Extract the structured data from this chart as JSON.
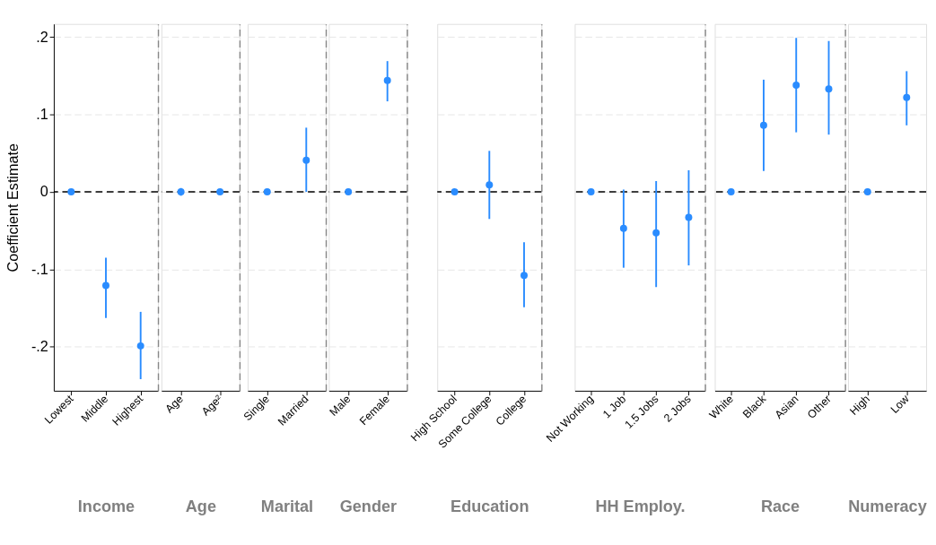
{
  "chart_data": [
    {
      "type": "scatter",
      "xlabel": "Income",
      "ylabel": "Coefficient Estimate",
      "categories": [
        "Lowest",
        "Middle",
        "Highest"
      ],
      "series": [
        {
          "color": "#2a8cff",
          "values": [
            0,
            -0.121,
            -0.199
          ],
          "errors": [
            null,
            [
              -0.163,
              -0.085
            ],
            [
              -0.242,
              -0.155
            ]
          ]
        }
      ],
      "ylim": [
        -0.257,
        0.217
      ],
      "yticks": [
        {
          "value": -0.2,
          "label": "-.2"
        },
        {
          "value": -0.1,
          "label": "-.1"
        },
        0,
        {
          "value": 0.1,
          "label": ".1"
        },
        {
          "value": 0.2,
          "label": ".2"
        }
      ],
      "ref_lines": [
        {
          "axis": "y",
          "value": 0,
          "color": "#000000",
          "line_style": "dashed"
        }
      ],
      "grid": "y",
      "marker": "circle"
    },
    {
      "type": "scatter",
      "xlabel": "Age",
      "categories": [
        "Age",
        "Age²"
      ],
      "series": [
        {
          "color": "#2a8cff",
          "values": [
            0,
            0
          ],
          "errors": [
            [
              -0.005,
              0.005
            ],
            null
          ]
        }
      ],
      "ylim": [
        -0.257,
        0.217
      ],
      "yticks": [
        -0.2,
        -0.1,
        0,
        0.1,
        0.2
      ],
      "ref_lines": [
        {
          "axis": "y",
          "value": 0,
          "color": "#000000",
          "line_style": "dashed"
        }
      ],
      "grid": "y",
      "marker": "circle",
      "tick_labels": "x"
    },
    {
      "type": "scatter",
      "xlabel": "Marital",
      "categories": [
        "Single",
        "Married"
      ],
      "series": [
        {
          "color": "#2a8cff",
          "values": [
            0,
            0.041
          ],
          "errors": [
            null,
            [
              0,
              0.083
            ]
          ]
        }
      ],
      "ylim": [
        -0.257,
        0.217
      ],
      "yticks": [
        -0.2,
        -0.1,
        0,
        0.1,
        0.2
      ],
      "ref_lines": [
        {
          "axis": "y",
          "value": 0,
          "color": "#000000",
          "line_style": "dashed"
        }
      ],
      "grid": "y",
      "marker": "circle",
      "tick_labels": "x"
    },
    {
      "type": "scatter",
      "xlabel": "Gender",
      "categories": [
        "Male",
        "Female"
      ],
      "series": [
        {
          "color": "#2a8cff",
          "values": [
            0,
            0.144
          ],
          "errors": [
            null,
            [
              0.117,
              0.169
            ]
          ]
        }
      ],
      "ylim": [
        -0.257,
        0.217
      ],
      "yticks": [
        -0.2,
        -0.1,
        0,
        0.1,
        0.2
      ],
      "ref_lines": [
        {
          "axis": "y",
          "value": 0,
          "color": "#000000",
          "line_style": "dashed"
        }
      ],
      "grid": "y",
      "marker": "circle",
      "tick_labels": "x"
    },
    {
      "type": "scatter",
      "xlabel": "Education",
      "categories": [
        "High School",
        "Some College",
        "College"
      ],
      "series": [
        {
          "color": "#2a8cff",
          "values": [
            0,
            0.009,
            -0.108
          ],
          "errors": [
            null,
            [
              -0.035,
              0.053
            ],
            [
              -0.149,
              -0.065
            ]
          ]
        }
      ],
      "ylim": [
        -0.257,
        0.217
      ],
      "yticks": [
        -0.2,
        -0.1,
        0,
        0.1,
        0.2
      ],
      "ref_lines": [
        {
          "axis": "y",
          "value": 0,
          "color": "#000000",
          "line_style": "dashed"
        }
      ],
      "grid": "y",
      "marker": "circle",
      "tick_labels": "x"
    },
    {
      "type": "scatter",
      "xlabel": "HH Employ.",
      "categories": [
        "Not Working",
        "1 Job",
        "1.5 Jobs",
        "2 Jobs"
      ],
      "series": [
        {
          "color": "#2a8cff",
          "values": [
            0,
            -0.047,
            -0.053,
            -0.033
          ],
          "errors": [
            null,
            [
              -0.098,
              0.003
            ],
            [
              -0.123,
              0.014
            ],
            [
              -0.095,
              0.028
            ]
          ]
        }
      ],
      "ylim": [
        -0.257,
        0.217
      ],
      "yticks": [
        -0.2,
        -0.1,
        0,
        0.1,
        0.2
      ],
      "ref_lines": [
        {
          "axis": "y",
          "value": 0,
          "color": "#000000",
          "line_style": "dashed"
        }
      ],
      "grid": "y",
      "marker": "circle",
      "tick_labels": "x"
    },
    {
      "type": "scatter",
      "xlabel": "Race",
      "categories": [
        "White",
        "Black",
        "Asian",
        "Other"
      ],
      "series": [
        {
          "color": "#2a8cff",
          "values": [
            0,
            0.086,
            0.138,
            0.133
          ],
          "errors": [
            null,
            [
              0.027,
              0.145
            ],
            [
              0.077,
              0.199
            ],
            [
              0.074,
              0.195
            ]
          ]
        }
      ],
      "ylim": [
        -0.257,
        0.217
      ],
      "yticks": [
        -0.2,
        -0.1,
        0,
        0.1,
        0.2
      ],
      "ref_lines": [
        {
          "axis": "y",
          "value": 0,
          "color": "#000000",
          "line_style": "dashed"
        }
      ],
      "grid": "y",
      "marker": "circle",
      "tick_labels": "x"
    },
    {
      "type": "scatter",
      "xlabel": "Numeracy",
      "categories": [
        "High",
        "Low"
      ],
      "series": [
        {
          "color": "#2a8cff",
          "values": [
            0,
            0.122
          ],
          "errors": [
            null,
            [
              0.086,
              0.156
            ]
          ]
        }
      ],
      "ylim": [
        -0.257,
        0.217
      ],
      "yticks": [
        -0.2,
        -0.1,
        0,
        0.1,
        0.2
      ],
      "ref_lines": [
        {
          "axis": "y",
          "value": 0,
          "color": "#000000",
          "line_style": "dashed"
        }
      ],
      "grid": "y",
      "marker": "circle",
      "tick_labels": "x"
    }
  ]
}
